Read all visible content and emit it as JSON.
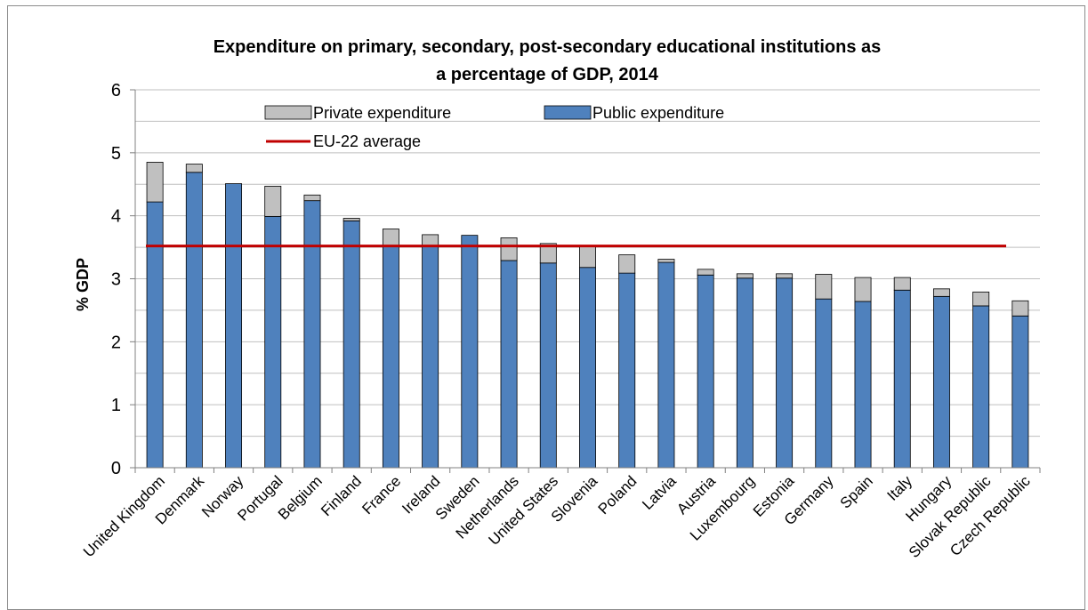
{
  "chart_data": {
    "type": "bar",
    "stacked": true,
    "title_lines": [
      "Expenditure on primary, secondary, post-secondary educational institutions as",
      "a percentage of GDP, 2014"
    ],
    "ylabel": "% GDP",
    "xlabel": "",
    "ylim": [
      0,
      6
    ],
    "yticks": [
      0,
      1,
      2,
      3,
      4,
      5,
      6
    ],
    "grid": true,
    "legend_placement": "top",
    "categories": [
      "United Kingdom",
      "Denmark",
      "Norway",
      "Portugal",
      "Belgium",
      "Finland",
      "France",
      "Ireland",
      "Sweden",
      "Netherlands",
      "United States",
      "Slovenia",
      "Poland",
      "Latvia",
      "Austria",
      "Luxembourg",
      "Estonia",
      "Germany",
      "Spain",
      "Italy",
      "Hungary",
      "Slovak Republic",
      "Czech Republic"
    ],
    "series": [
      {
        "name": "Public expenditure",
        "color": "#4f81bd",
        "values": [
          4.22,
          4.69,
          4.51,
          3.99,
          4.24,
          3.92,
          3.52,
          3.53,
          3.69,
          3.29,
          3.25,
          3.18,
          3.09,
          3.26,
          3.06,
          3.01,
          3.01,
          2.68,
          2.64,
          2.82,
          2.72,
          2.57,
          2.41
        ]
      },
      {
        "name": "Private expenditure",
        "color": "#c0c0c0",
        "values": [
          0.63,
          0.13,
          0.0,
          0.48,
          0.09,
          0.04,
          0.27,
          0.17,
          0.0,
          0.36,
          0.31,
          0.34,
          0.29,
          0.05,
          0.09,
          0.07,
          0.07,
          0.39,
          0.38,
          0.2,
          0.12,
          0.22,
          0.24
        ]
      }
    ],
    "reference_line": {
      "name": "EU-22 average",
      "value": 3.52,
      "color": "#c00000"
    },
    "legend_entries": [
      {
        "name": "Private expenditure",
        "color": "#c0c0c0"
      },
      {
        "name": "Public expenditure",
        "color": "#4f81bd"
      },
      {
        "name": "EU-22 average",
        "color": "#c00000"
      }
    ]
  }
}
